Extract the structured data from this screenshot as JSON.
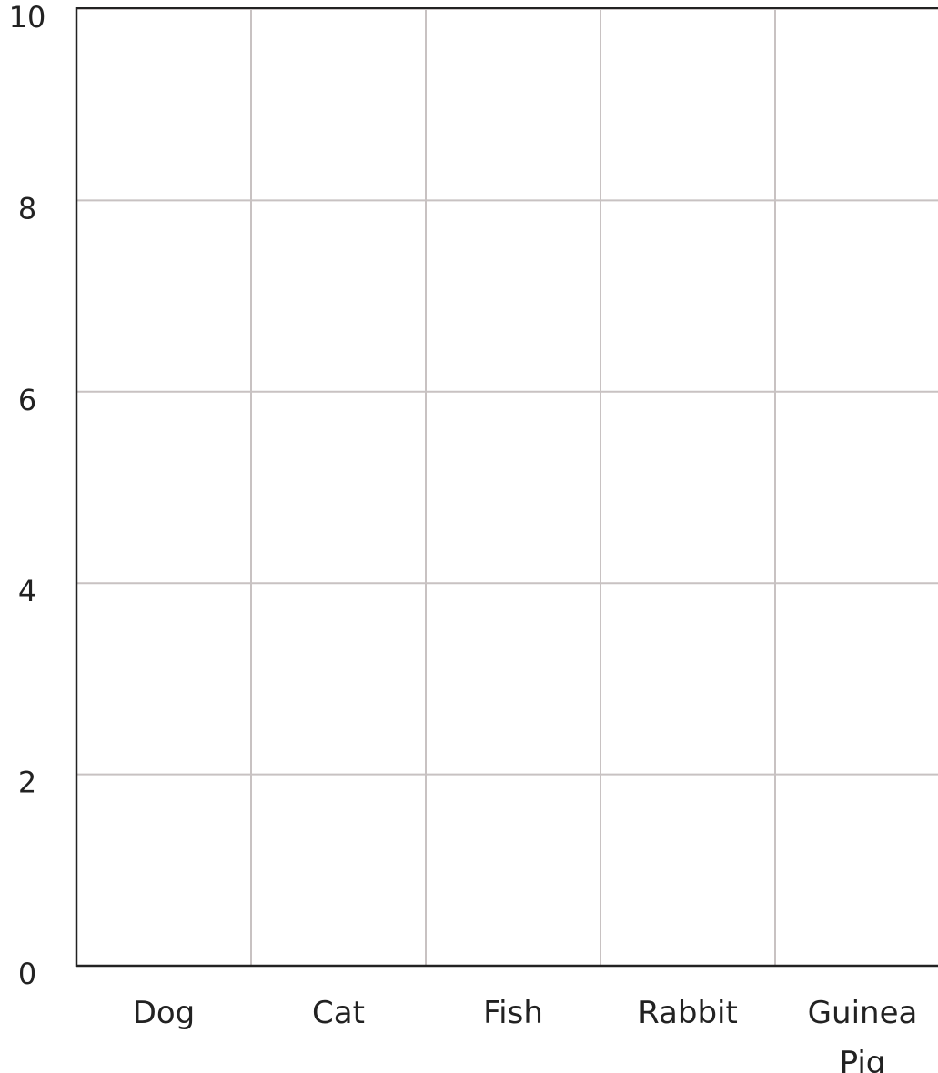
{
  "chart_data": {
    "type": "bar",
    "categories": [
      "Dog",
      "Cat",
      "Fish",
      "Rabbit",
      "Guinea Pig"
    ],
    "ylim": [
      0,
      10
    ],
    "yticks": [
      0,
      2,
      4,
      6,
      8,
      10
    ],
    "grid": true
  }
}
